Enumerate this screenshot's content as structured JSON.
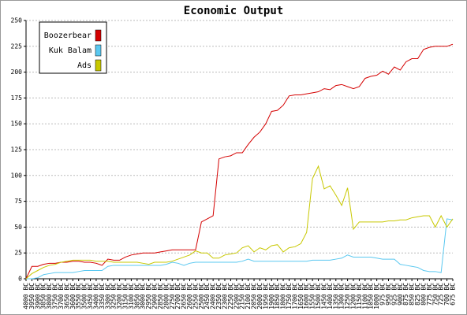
{
  "chart_data": {
    "type": "line",
    "title": "Economic Output",
    "categories": [
      "4000 BC",
      "3950 BC",
      "3900 BC",
      "3850 BC",
      "3800 BC",
      "3750 BC",
      "3700 BC",
      "3650 BC",
      "3600 BC",
      "3550 BC",
      "3500 BC",
      "3450 BC",
      "3400 BC",
      "3350 BC",
      "3300 BC",
      "3250 BC",
      "3200 BC",
      "3150 BC",
      "3100 BC",
      "3050 BC",
      "3000 BC",
      "2950 BC",
      "2900 BC",
      "2850 BC",
      "2800 BC",
      "2750 BC",
      "2700 BC",
      "2650 BC",
      "2600 BC",
      "2550 BC",
      "2500 BC",
      "2450 BC",
      "2400 BC",
      "2350 BC",
      "2300 BC",
      "2250 BC",
      "2200 BC",
      "2150 BC",
      "2100 BC",
      "2050 BC",
      "2000 BC",
      "1950 BC",
      "1900 BC",
      "1850 BC",
      "1800 BC",
      "1750 BC",
      "1700 BC",
      "1650 BC",
      "1600 BC",
      "1550 BC",
      "1500 BC",
      "1450 BC",
      "1400 BC",
      "1350 BC",
      "1300 BC",
      "1250 BC",
      "1200 BC",
      "1150 BC",
      "1100 BC",
      "1050 BC",
      "1000 BC",
      "975 BC",
      "950 BC",
      "925 BC",
      "900 BC",
      "875 BC",
      "850 BC",
      "825 BC",
      "800 BC",
      "775 BC",
      "750 BC",
      "725 BC",
      "700 BC",
      "675 BC"
    ],
    "series": [
      {
        "name": "Boozerbear",
        "color": "#d40000",
        "values": [
          0,
          12,
          12,
          14,
          15,
          15,
          16,
          16,
          17,
          17,
          16,
          16,
          15,
          13,
          19,
          18,
          18,
          21,
          23,
          24,
          25,
          25,
          25,
          26,
          27,
          28,
          28,
          28,
          28,
          28,
          55,
          58,
          61,
          116,
          118,
          119,
          122,
          122,
          130,
          137,
          142,
          150,
          162,
          163,
          168,
          177,
          178,
          178,
          179,
          180,
          181,
          184,
          183,
          187,
          188,
          186,
          184,
          186,
          194,
          196,
          197,
          201,
          198,
          205,
          202,
          210,
          213,
          213,
          222,
          224,
          225,
          225,
          225,
          227
        ]
      },
      {
        "name": "Kuk Balam",
        "color": "#5ac8f0",
        "values": [
          0,
          0,
          1,
          4,
          5,
          6,
          6,
          6,
          6,
          7,
          8,
          8,
          8,
          8,
          12,
          13,
          13,
          13,
          13,
          13,
          13,
          13,
          13,
          13,
          14,
          16,
          15,
          13,
          15,
          16,
          16,
          16,
          16,
          16,
          16,
          16,
          16,
          17,
          19,
          17,
          17,
          17,
          17,
          17,
          17,
          17,
          17,
          17,
          17,
          18,
          18,
          18,
          18,
          19,
          20,
          23,
          21,
          21,
          21,
          21,
          20,
          19,
          19,
          19,
          14,
          13,
          12,
          11,
          8,
          7,
          7,
          6,
          58,
          57
        ]
      },
      {
        "name": "Ads",
        "color": "#c8c800",
        "values": [
          0,
          5,
          8,
          11,
          13,
          14,
          16,
          17,
          18,
          18,
          18,
          18,
          17,
          17,
          17,
          16,
          16,
          16,
          16,
          16,
          15,
          14,
          16,
          16,
          16,
          17,
          19,
          21,
          23,
          27,
          25,
          25,
          20,
          20,
          23,
          24,
          25,
          30,
          32,
          26,
          30,
          28,
          32,
          33,
          26,
          30,
          31,
          34,
          45,
          97,
          109,
          87,
          90,
          81,
          71,
          88,
          48,
          55,
          55,
          55,
          55,
          55,
          56,
          56,
          57,
          57,
          59,
          60,
          61,
          61,
          50,
          61,
          50,
          58
        ]
      }
    ],
    "ylim": [
      0,
      250
    ],
    "yticks": [
      0,
      25,
      50,
      75,
      100,
      125,
      150,
      175,
      200,
      225,
      250
    ],
    "grid": true
  }
}
